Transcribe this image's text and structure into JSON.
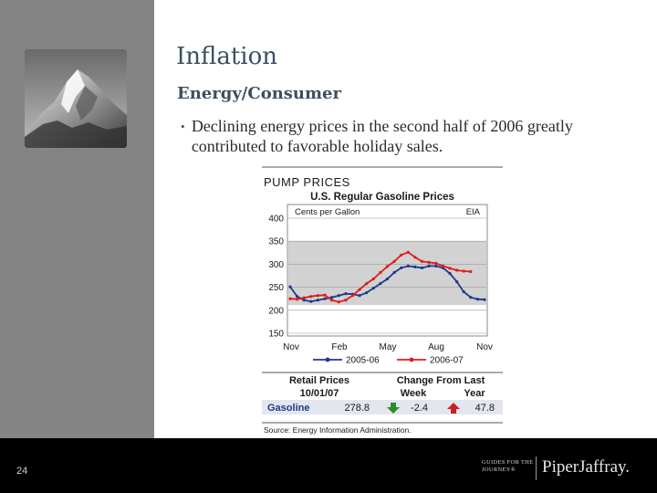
{
  "slide": {
    "title": "Inflation",
    "subtitle": "Energy/Consumer",
    "bullet": "Declining energy prices in the second half of 2006 greatly contributed to favorable holiday sales.",
    "bullet_mark": "•",
    "page_number": "24",
    "footer_logo_small": "GUIDES FOR THE JOURNEY®",
    "footer_logo_brand": "PiperJaffray."
  },
  "colors": {
    "sidebar": "#848484",
    "title": "#3c4f62",
    "series_2005": "#1f3a8a",
    "series_2006": "#e01b1b",
    "table_header": "#1a1a1a",
    "gasoline_label": "#1f3a8a",
    "down_arrow": "#2e8b2e",
    "up_arrow": "#cc1f1f"
  },
  "chart_data": {
    "type": "line",
    "heading": "PUMP PRICES",
    "title": "U.S. Regular Gasoline Prices",
    "unit_label": "Cents per Gallon",
    "source_tag": "EIA",
    "ylim": [
      150,
      400
    ],
    "yticks": [
      "400",
      "350",
      "300",
      "250",
      "200",
      "150"
    ],
    "xticks": [
      "Nov",
      "Feb",
      "May",
      "Aug",
      "Nov"
    ],
    "grid": true,
    "legend_position": "bottom",
    "series": [
      {
        "name": "2005-06",
        "color": "#1f3a8a",
        "values": [
          251,
          230,
          222,
          219,
          222,
          225,
          228,
          232,
          236,
          235,
          232,
          238,
          248,
          258,
          268,
          282,
          292,
          296,
          294,
          292,
          296,
          296,
          292,
          280,
          262,
          240,
          228,
          224,
          223
        ]
      },
      {
        "name": "2006-07",
        "color": "#e01b1b",
        "values": [
          225,
          224,
          227,
          230,
          232,
          233,
          222,
          218,
          222,
          232,
          245,
          258,
          268,
          282,
          295,
          306,
          320,
          326,
          315,
          306,
          304,
          302,
          296,
          291,
          287,
          285,
          284
        ]
      }
    ],
    "table": {
      "header_left": "Retail Prices",
      "header_right": "Change From Last",
      "date": "10/01/07",
      "col_week": "Week",
      "col_year": "Year",
      "row_label": "Gasoline",
      "price": "278.8",
      "week_change": "-2.4",
      "year_change": "47.8"
    },
    "source_note": "Source: Energy Information Administration."
  }
}
